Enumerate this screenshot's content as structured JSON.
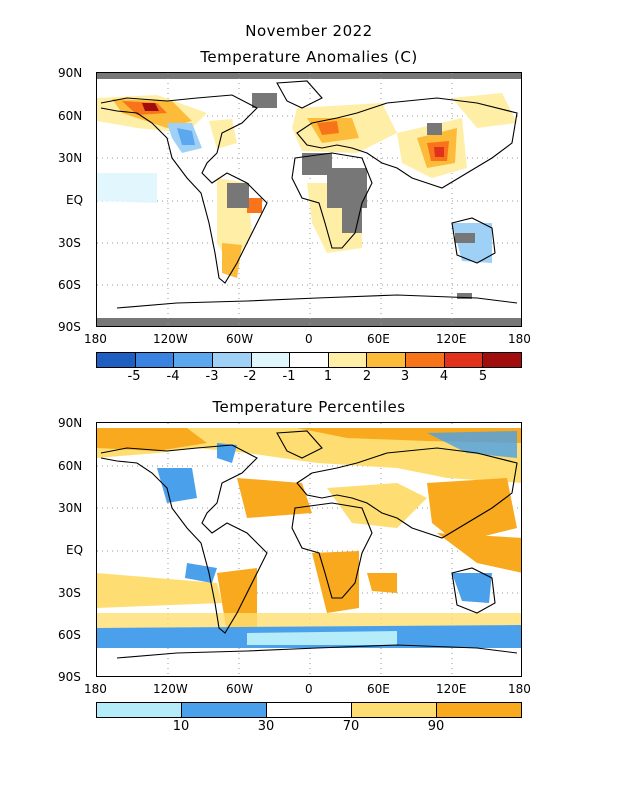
{
  "header": {
    "title": "November 2022"
  },
  "maps": [
    {
      "title": "Temperature Anomalies (C)",
      "lat_labels": [
        "90N",
        "60N",
        "30N",
        "EQ",
        "30S",
        "60S",
        "90S"
      ],
      "lon_labels": [
        "180",
        "120W",
        "60W",
        "0",
        "60E",
        "120E",
        "180"
      ],
      "colorbar": {
        "colors": [
          "#1f5fbf",
          "#3a83e0",
          "#5ca8ee",
          "#9fd0f5",
          "#dff6fd",
          "#ffffff",
          "#ffeea6",
          "#fdbb3a",
          "#f8741b",
          "#e1301c",
          "#a10d0d"
        ],
        "labels": [
          "-5",
          "-4",
          "-3",
          "-2",
          "-1",
          "1",
          "2",
          "3",
          "4",
          "5"
        ]
      },
      "legend_missing_color": "#777777"
    },
    {
      "title": "Temperature Percentiles",
      "lat_labels": [
        "90N",
        "60N",
        "30N",
        "EQ",
        "30S",
        "60S",
        "90S"
      ],
      "lon_labels": [
        "180",
        "120W",
        "60W",
        "0",
        "60E",
        "120E",
        "180"
      ],
      "colorbar": {
        "colors": [
          "#b4ecfa",
          "#4aa0ea",
          "#ffffff",
          "#fede72",
          "#f8a91d"
        ],
        "labels": [
          "10",
          "30",
          "70",
          "90"
        ]
      }
    }
  ]
}
